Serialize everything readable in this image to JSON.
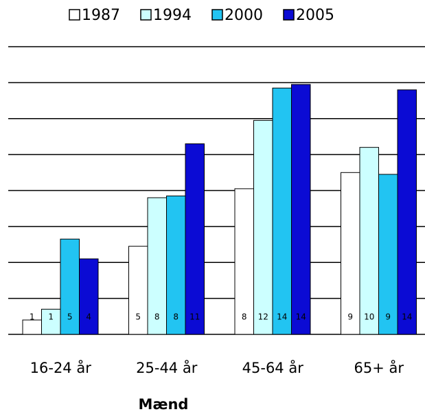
{
  "chart_data": {
    "type": "bar",
    "x_label": "Mænd",
    "categories": [
      "16-24 år",
      "25-44 år",
      "45-64 år",
      "65+ år"
    ],
    "series": [
      {
        "name": "1987",
        "color": "#ffffff",
        "values": [
          0.8,
          4.9,
          8.1,
          9.0
        ],
        "value_labels": [
          "1",
          "5",
          "8",
          "9"
        ]
      },
      {
        "name": "1994",
        "color": "#ccffff",
        "values": [
          1.4,
          7.6,
          11.9,
          10.4
        ],
        "value_labels": [
          "1",
          "8",
          "12",
          "10"
        ]
      },
      {
        "name": "2000",
        "color": "#22c4f2",
        "values": [
          5.3,
          7.7,
          13.7,
          8.9
        ],
        "value_labels": [
          "5",
          "8",
          "14",
          "9"
        ]
      },
      {
        "name": "2005",
        "color": "#0b0bd4",
        "values": [
          4.2,
          10.6,
          13.9,
          13.6
        ],
        "value_labels": [
          "4",
          "11",
          "14",
          "14"
        ]
      }
    ],
    "ylim": [
      0,
      16
    ],
    "yticks": [
      0,
      2,
      4,
      6,
      8,
      10,
      12,
      14,
      16
    ],
    "grid": true
  }
}
